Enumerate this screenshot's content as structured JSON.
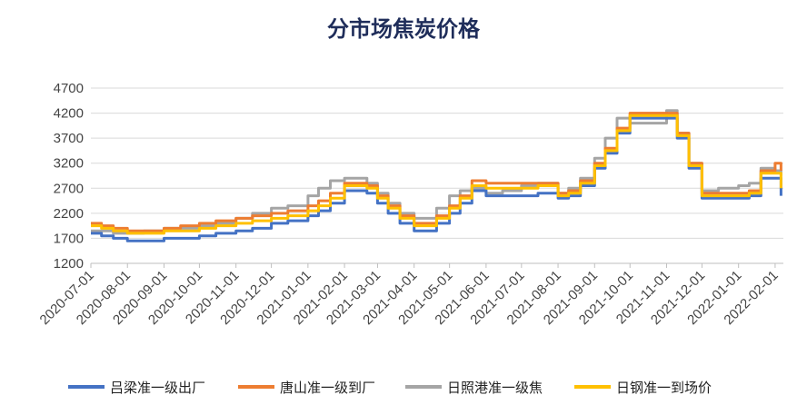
{
  "chart_data": {
    "type": "line",
    "title": "分市场焦炭价格",
    "xlabel": "",
    "ylabel": "",
    "ylim": [
      1200,
      4700
    ],
    "yticks": [
      1200,
      1700,
      2200,
      2700,
      3200,
      3700,
      4200,
      4700
    ],
    "grid": "horizontal",
    "legend_position": "bottom",
    "x_tick_labels": [
      "2020-07-01",
      "2020-08-01",
      "2020-09-01",
      "2020-10-01",
      "2020-11-01",
      "2020-12-01",
      "2021-01-01",
      "2021-02-01",
      "2021-03-01",
      "2021-04-01",
      "2021-05-01",
      "2021-06-01",
      "2021-07-01",
      "2021-08-01",
      "2021-09-01",
      "2021-10-01",
      "2021-11-01",
      "2021-12-01",
      "2022-01-01",
      "2022-02-01"
    ],
    "x": [
      "2020-07-01",
      "2020-07-10",
      "2020-07-20",
      "2020-08-01",
      "2020-08-15",
      "2020-09-01",
      "2020-09-15",
      "2020-10-01",
      "2020-10-15",
      "2020-11-01",
      "2020-11-15",
      "2020-12-01",
      "2020-12-15",
      "2021-01-01",
      "2021-01-10",
      "2021-01-20",
      "2021-02-01",
      "2021-02-10",
      "2021-02-20",
      "2021-03-01",
      "2021-03-10",
      "2021-03-20",
      "2021-04-01",
      "2021-04-10",
      "2021-04-20",
      "2021-05-01",
      "2021-05-10",
      "2021-05-20",
      "2021-06-01",
      "2021-06-15",
      "2021-07-01",
      "2021-07-15",
      "2021-08-01",
      "2021-08-10",
      "2021-08-20",
      "2021-09-01",
      "2021-09-10",
      "2021-09-20",
      "2021-10-01",
      "2021-10-15",
      "2021-11-01",
      "2021-11-10",
      "2021-11-20",
      "2021-12-01",
      "2021-12-15",
      "2022-01-01",
      "2022-01-10",
      "2022-01-20",
      "2022-02-01",
      "2022-02-06"
    ],
    "series": [
      {
        "name": "吕梁准一级出厂",
        "color": "#4472c4",
        "values": [
          1800,
          1750,
          1700,
          1650,
          1650,
          1700,
          1700,
          1750,
          1800,
          1850,
          1900,
          2000,
          2050,
          2150,
          2250,
          2400,
          2650,
          2650,
          2600,
          2400,
          2200,
          2000,
          1850,
          1850,
          2000,
          2200,
          2400,
          2650,
          2550,
          2550,
          2550,
          2600,
          2500,
          2550,
          2750,
          3100,
          3400,
          3800,
          4100,
          4100,
          4100,
          3700,
          3100,
          2500,
          2500,
          2500,
          2550,
          2900,
          2900,
          2550
        ]
      },
      {
        "name": "唐山准一级到厂",
        "color": "#ed7d31",
        "values": [
          2000,
          1950,
          1900,
          1850,
          1850,
          1900,
          1950,
          2000,
          2050,
          2100,
          2150,
          2200,
          2250,
          2350,
          2450,
          2600,
          2800,
          2800,
          2750,
          2550,
          2350,
          2150,
          2000,
          2000,
          2150,
          2350,
          2550,
          2850,
          2800,
          2800,
          2800,
          2800,
          2600,
          2650,
          2850,
          3200,
          3500,
          3900,
          4200,
          4200,
          4200,
          3800,
          3200,
          2600,
          2600,
          2600,
          2650,
          3050,
          3200,
          3050
        ]
      },
      {
        "name": "日照港准一级焦",
        "color": "#a5a5a5",
        "values": [
          1850,
          1850,
          1800,
          1800,
          1850,
          1900,
          1900,
          1950,
          2000,
          2100,
          2200,
          2300,
          2350,
          2550,
          2700,
          2850,
          2900,
          2900,
          2800,
          2600,
          2400,
          2200,
          2100,
          2100,
          2300,
          2550,
          2650,
          2700,
          2600,
          2650,
          2750,
          2800,
          2600,
          2700,
          2900,
          3300,
          3700,
          4100,
          4000,
          4000,
          4250,
          3800,
          3200,
          2650,
          2700,
          2750,
          2800,
          3100,
          3050,
          2950
        ]
      },
      {
        "name": "日钢准一到场价",
        "color": "#ffc000",
        "values": [
          1950,
          1900,
          1850,
          1800,
          1800,
          1850,
          1850,
          1900,
          1950,
          2000,
          2050,
          2100,
          2150,
          2250,
          2350,
          2500,
          2750,
          2750,
          2700,
          2500,
          2300,
          2100,
          1950,
          1950,
          2100,
          2300,
          2500,
          2750,
          2700,
          2700,
          2700,
          2750,
          2550,
          2600,
          2800,
          3150,
          3450,
          3850,
          4150,
          4150,
          4150,
          3750,
          3150,
          2550,
          2550,
          2550,
          2600,
          3000,
          3000,
          2700
        ]
      }
    ]
  }
}
